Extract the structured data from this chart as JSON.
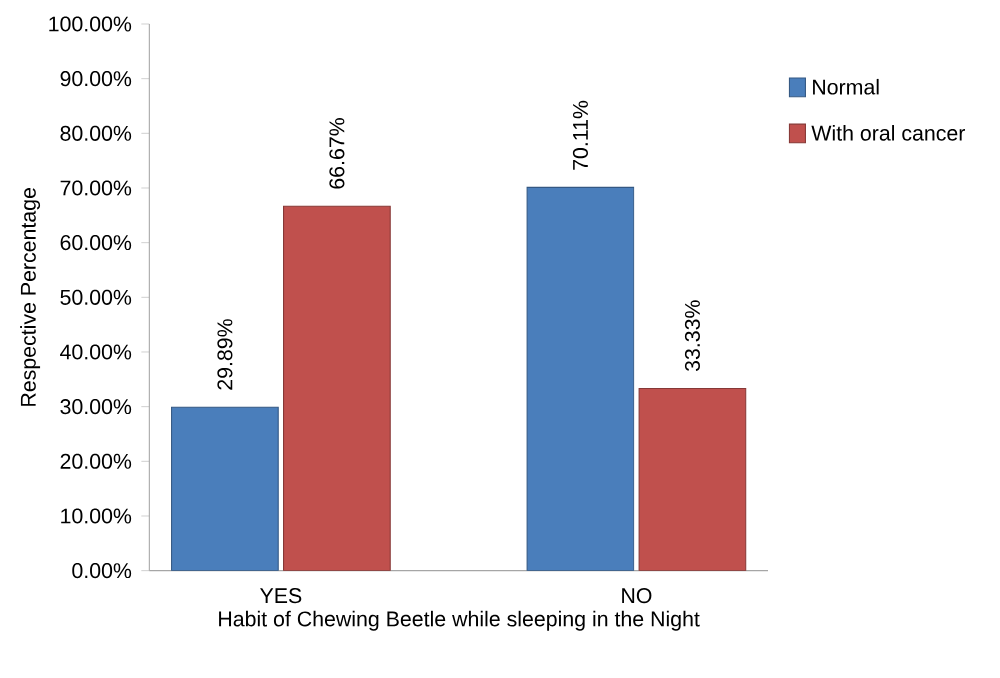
{
  "chart_data": {
    "type": "bar",
    "ylabel": "Respective Percentage",
    "xlabel": "Habit of Chewing Beetle while sleeping in the Night",
    "categories": [
      "YES",
      "NO"
    ],
    "series": [
      {
        "name": "Normal",
        "color": "#4a7ebb",
        "values": [
          29.89,
          70.11
        ],
        "value_labels": [
          "29.89%",
          "70.11%"
        ]
      },
      {
        "name": "With oral cancer",
        "color": "#c0504d",
        "values": [
          66.67,
          33.33
        ],
        "value_labels": [
          "66.67%",
          "33.33%"
        ]
      }
    ],
    "ylim": [
      0,
      100
    ],
    "yticks": [
      {
        "value": 0,
        "label": "0.00%"
      },
      {
        "value": 10,
        "label": "10.00%"
      },
      {
        "value": 20,
        "label": "20.00%"
      },
      {
        "value": 30,
        "label": "30.00%"
      },
      {
        "value": 40,
        "label": "40.00%"
      },
      {
        "value": 50,
        "label": "50.00%"
      },
      {
        "value": 60,
        "label": "60.00%"
      },
      {
        "value": 70,
        "label": "70.00%"
      },
      {
        "value": 80,
        "label": "80.00%"
      },
      {
        "value": 90,
        "label": "90.00%"
      },
      {
        "value": 100,
        "label": "100.00%"
      }
    ],
    "legend": "right"
  }
}
